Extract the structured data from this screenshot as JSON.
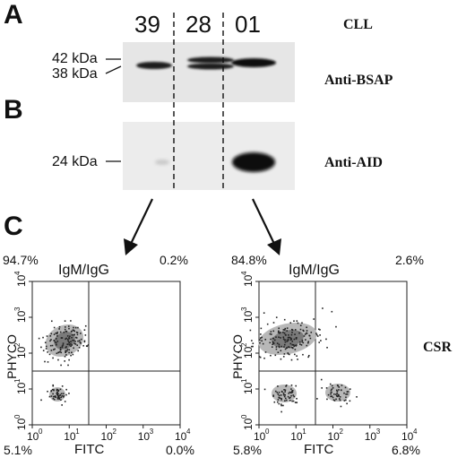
{
  "panels": {
    "a": "A",
    "b": "B",
    "c": "C"
  },
  "lanes": [
    "39",
    "28",
    "01"
  ],
  "right_labels": {
    "cll": "CLL",
    "anti_bsap": "Anti-BSAP",
    "anti_aid": "Anti-AID",
    "csr": "CSR"
  },
  "markers": {
    "kda42": "42 kDa",
    "kda38": "38 kDa",
    "kda24": "24 kDa"
  },
  "flow_left": {
    "title": "IgM/IgG",
    "q_ul": "94.7%",
    "q_ur": "0.2%",
    "q_ll": "5.1%",
    "q_lr": "0.0%",
    "xlabel": "FITC",
    "ylabel": "PHYCO"
  },
  "flow_right": {
    "title": "IgM/IgG",
    "q_ul": "84.8%",
    "q_ur": "2.6%",
    "q_ll": "5.8%",
    "q_lr": "6.8%",
    "xlabel": "FITC",
    "ylabel": "PHYCO"
  },
  "axis_ticks": [
    "10",
    "10",
    "10",
    "10",
    "10"
  ],
  "axis_tick_exps": [
    "0",
    "1",
    "2",
    "3",
    "4"
  ]
}
